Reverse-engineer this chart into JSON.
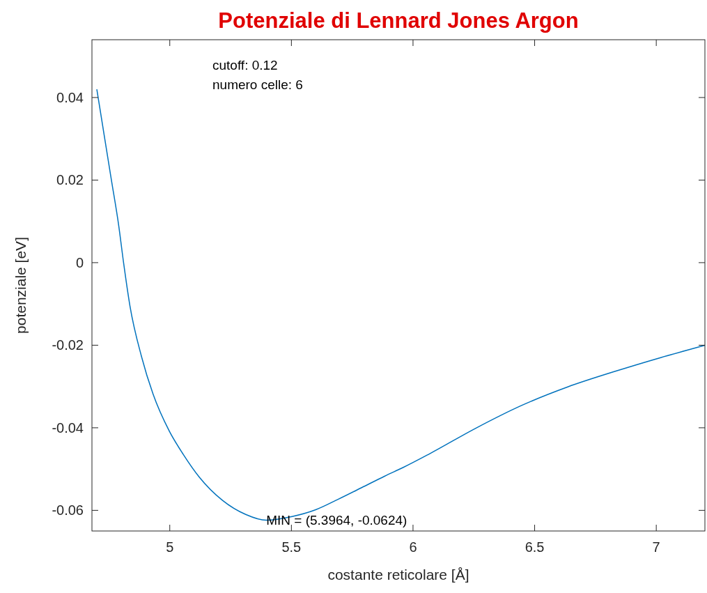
{
  "chart_data": {
    "type": "line",
    "title": "Potenziale di Lennard Jones Argon",
    "xlabel": "costante reticolare [Å]",
    "ylabel": "potenziale [eV]",
    "x": [
      4.7,
      4.73,
      4.76,
      4.79,
      4.81,
      4.836,
      4.884,
      4.931,
      4.998,
      5.055,
      5.122,
      5.217,
      5.312,
      5.3964,
      5.503,
      5.598,
      5.693,
      5.789,
      5.884,
      5.96,
      6.065,
      6.255,
      6.446,
      6.636,
      6.827,
      7.018,
      7.2
    ],
    "series": [
      {
        "color": "#0072bd",
        "values": [
          0.042,
          0.031,
          0.02,
          0.009,
          0.0,
          -0.0104,
          -0.0228,
          -0.0318,
          -0.0408,
          -0.0464,
          -0.052,
          -0.0576,
          -0.061,
          -0.0624,
          -0.0615,
          -0.0599,
          -0.0573,
          -0.0545,
          -0.0517,
          -0.0496,
          -0.0464,
          -0.0402,
          -0.0346,
          -0.0301,
          -0.0264,
          -0.023,
          -0.02
        ]
      }
    ],
    "xlim": [
      4.68,
      7.2
    ],
    "xticks": [
      5,
      5.5,
      6,
      6.5,
      7
    ],
    "ylim": [
      -0.065,
      0.054
    ],
    "yticks": [
      -0.06,
      -0.04,
      -0.02,
      0,
      0.02,
      0.04
    ],
    "annotations": [
      "cutoff: 0.12",
      "numero celle: 6",
      {
        "text": "MIN = (5.3964, -0.0624)",
        "x": 5.3964,
        "y": -0.0624
      }
    ],
    "grid": false,
    "marker": "none",
    "line_style": "solid"
  }
}
